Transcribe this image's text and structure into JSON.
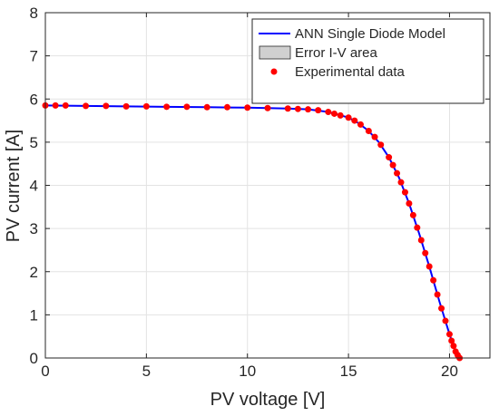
{
  "chart_data": {
    "type": "line",
    "title": "",
    "xlabel": "PV voltage [V]",
    "ylabel": "PV current [A]",
    "xlim": [
      0,
      22
    ],
    "ylim": [
      0,
      8
    ],
    "xticks": [
      0,
      5,
      10,
      15,
      20
    ],
    "yticks": [
      0,
      1,
      2,
      3,
      4,
      5,
      6,
      7,
      8
    ],
    "grid": true,
    "legend_position": "top-right",
    "series": [
      {
        "name": "ANN Single Diode Model",
        "kind": "line",
        "color": "#0000ff",
        "points": [
          [
            0,
            5.85
          ],
          [
            2,
            5.84
          ],
          [
            4,
            5.83
          ],
          [
            6,
            5.82
          ],
          [
            8,
            5.81
          ],
          [
            10,
            5.8
          ],
          [
            11,
            5.79
          ],
          [
            12,
            5.78
          ],
          [
            13,
            5.76
          ],
          [
            14,
            5.7
          ],
          [
            15,
            5.57
          ],
          [
            15.5,
            5.44
          ],
          [
            16,
            5.26
          ],
          [
            16.5,
            5.0
          ],
          [
            17,
            4.65
          ],
          [
            17.5,
            4.18
          ],
          [
            18,
            3.58
          ],
          [
            18.5,
            2.88
          ],
          [
            19,
            2.12
          ],
          [
            19.5,
            1.31
          ],
          [
            20,
            0.55
          ],
          [
            20.3,
            0.15
          ],
          [
            20.5,
            0
          ]
        ]
      },
      {
        "name": "Error I-V area",
        "kind": "area",
        "color": "#d0d0d0"
      },
      {
        "name": "Experimental data",
        "kind": "scatter",
        "color": "#ff0000",
        "points": [
          [
            0,
            5.85
          ],
          [
            0.5,
            5.85
          ],
          [
            1,
            5.85
          ],
          [
            2,
            5.84
          ],
          [
            3,
            5.84
          ],
          [
            4,
            5.83
          ],
          [
            5,
            5.83
          ],
          [
            6,
            5.82
          ],
          [
            7,
            5.82
          ],
          [
            8,
            5.81
          ],
          [
            9,
            5.81
          ],
          [
            10,
            5.8
          ],
          [
            11,
            5.79
          ],
          [
            12,
            5.78
          ],
          [
            12.5,
            5.77
          ],
          [
            13,
            5.76
          ],
          [
            13.5,
            5.74
          ],
          [
            14,
            5.7
          ],
          [
            14.3,
            5.66
          ],
          [
            14.6,
            5.62
          ],
          [
            15,
            5.57
          ],
          [
            15.3,
            5.5
          ],
          [
            15.6,
            5.41
          ],
          [
            16,
            5.26
          ],
          [
            16.3,
            5.12
          ],
          [
            16.6,
            4.94
          ],
          [
            17,
            4.65
          ],
          [
            17.2,
            4.47
          ],
          [
            17.4,
            4.28
          ],
          [
            17.6,
            4.07
          ],
          [
            17.8,
            3.84
          ],
          [
            18,
            3.58
          ],
          [
            18.2,
            3.31
          ],
          [
            18.4,
            3.02
          ],
          [
            18.6,
            2.73
          ],
          [
            18.8,
            2.43
          ],
          [
            19,
            2.12
          ],
          [
            19.2,
            1.8
          ],
          [
            19.4,
            1.47
          ],
          [
            19.6,
            1.15
          ],
          [
            19.8,
            0.86
          ],
          [
            20,
            0.55
          ],
          [
            20.1,
            0.4
          ],
          [
            20.2,
            0.28
          ],
          [
            20.3,
            0.15
          ],
          [
            20.4,
            0.07
          ],
          [
            20.5,
            0
          ]
        ]
      }
    ]
  }
}
